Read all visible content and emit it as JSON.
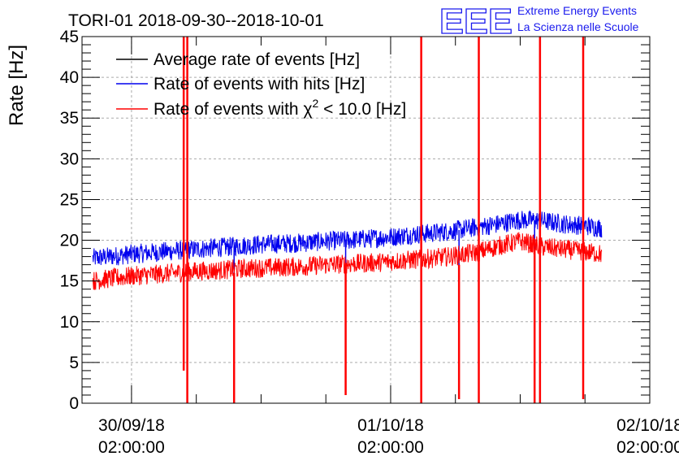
{
  "header": {
    "title": "TORI-01 2018-09-30--2018-10-01",
    "logo_text": "EEE",
    "logo_line1": "Extreme Energy Events",
    "logo_line2": "La Scienza nelle Scuole"
  },
  "colors": {
    "average": "#000000",
    "hits": "#0000ee",
    "chi2": "#ff0000",
    "logo": "#1a1aee",
    "grid": "#aaaaaa"
  },
  "chart_data": {
    "type": "line",
    "title": "TORI-01 2018-09-30--2018-10-01",
    "ylabel": "Rate [Hz]",
    "xlabel": "",
    "ylim": [
      0,
      45
    ],
    "xlim": [
      "2018-09-29 21:25",
      "2018-10-02 02:00"
    ],
    "grid": true,
    "legend_position": "top-left",
    "y_ticks": [
      0,
      5,
      10,
      15,
      20,
      25,
      30,
      35,
      40,
      45
    ],
    "x_ticks": [
      {
        "date": "30/09/18",
        "time": "02:00:00",
        "value": "2018-09-30 02:00"
      },
      {
        "date": "01/10/18",
        "time": "02:00:00",
        "value": "2018-10-01 02:00"
      },
      {
        "date": "02/10/18",
        "time": "02:00:00",
        "value": "2018-10-02 02:00"
      }
    ],
    "legend": [
      {
        "key": "average",
        "label": "Average rate of events [Hz]"
      },
      {
        "key": "hits",
        "label": "Rate of events with hits [Hz]"
      },
      {
        "key": "chi2",
        "label_pre": "Rate of events with ",
        "label_chi": "χ",
        "label_sup": "2",
        "label_post": " < 10.0 [Hz]"
      }
    ],
    "series": [
      {
        "key": "hits",
        "name": "Rate of events with hits [Hz]",
        "x": [
          "2018-09-29 22:25",
          "2018-09-30 00:00",
          "2018-09-30 02:00",
          "2018-09-30 04:00",
          "2018-09-30 06:00",
          "2018-09-30 08:00",
          "2018-09-30 10:00",
          "2018-09-30 12:00",
          "2018-09-30 14:00",
          "2018-09-30 16:00",
          "2018-09-30 18:00",
          "2018-09-30 20:00",
          "2018-09-30 22:00",
          "2018-10-01 00:00",
          "2018-10-01 02:00",
          "2018-10-01 04:00",
          "2018-10-01 06:00",
          "2018-10-01 08:00",
          "2018-10-01 10:00",
          "2018-10-01 12:00",
          "2018-10-01 14:00",
          "2018-10-01 16:00",
          "2018-10-01 18:00",
          "2018-10-01 20:00",
          "2018-10-01 21:35"
        ],
        "values": [
          17.8,
          18.0,
          18.3,
          18.5,
          18.7,
          18.9,
          19.1,
          19.3,
          19.5,
          19.6,
          19.7,
          19.9,
          20.0,
          20.2,
          20.4,
          20.7,
          20.9,
          21.2,
          21.6,
          22.0,
          22.5,
          22.4,
          22.0,
          21.8,
          21.5
        ],
        "dips": [
          {
            "x": "2018-09-30 07:10",
            "y": 0
          },
          {
            "x": "2018-09-30 11:30",
            "y": 9.5
          },
          {
            "x": "2018-09-30 21:50",
            "y": 1
          },
          {
            "x": "2018-10-01 04:50",
            "y": 0
          },
          {
            "x": "2018-10-01 08:20",
            "y": 10
          },
          {
            "x": "2018-10-01 15:20",
            "y": 0.5
          },
          {
            "x": "2018-10-01 19:50",
            "y": 1
          }
        ]
      },
      {
        "key": "chi2",
        "name": "Rate of events with χ2 < 10.0 [Hz]",
        "x": [
          "2018-09-29 22:25",
          "2018-09-30 00:00",
          "2018-09-30 02:00",
          "2018-09-30 04:00",
          "2018-09-30 06:00",
          "2018-09-30 08:00",
          "2018-09-30 10:00",
          "2018-09-30 12:00",
          "2018-09-30 14:00",
          "2018-09-30 16:00",
          "2018-09-30 18:00",
          "2018-09-30 20:00",
          "2018-09-30 22:00",
          "2018-10-01 00:00",
          "2018-10-01 02:00",
          "2018-10-01 04:00",
          "2018-10-01 06:00",
          "2018-10-01 08:00",
          "2018-10-01 10:00",
          "2018-10-01 12:00",
          "2018-10-01 14:00",
          "2018-10-01 16:00",
          "2018-10-01 18:00",
          "2018-10-01 20:00",
          "2018-10-01 21:35"
        ],
        "values": [
          15.0,
          15.3,
          15.6,
          15.8,
          16.0,
          16.2,
          16.3,
          16.5,
          16.6,
          16.7,
          16.8,
          17.0,
          17.1,
          17.2,
          17.4,
          17.6,
          17.8,
          18.1,
          18.5,
          19.3,
          19.9,
          19.2,
          18.9,
          18.6,
          18.3
        ],
        "spikes": [
          {
            "x": "2018-09-30 06:50",
            "min": 4,
            "max": 45
          },
          {
            "x": "2018-09-30 07:10",
            "min": 0,
            "max": 45
          },
          {
            "x": "2018-09-30 11:30",
            "min": 0,
            "max": 16
          },
          {
            "x": "2018-09-30 21:50",
            "min": 1,
            "max": 17
          },
          {
            "x": "2018-10-01 04:50",
            "min": 0,
            "max": 45
          },
          {
            "x": "2018-10-01 08:20",
            "min": 0.5,
            "max": 17
          },
          {
            "x": "2018-10-01 10:10",
            "min": 0,
            "max": 45
          },
          {
            "x": "2018-10-01 15:20",
            "min": 0,
            "max": 19
          },
          {
            "x": "2018-10-01 15:50",
            "min": 0,
            "max": 45
          },
          {
            "x": "2018-10-01 19:50",
            "min": 0.5,
            "max": 45
          }
        ]
      }
    ]
  }
}
